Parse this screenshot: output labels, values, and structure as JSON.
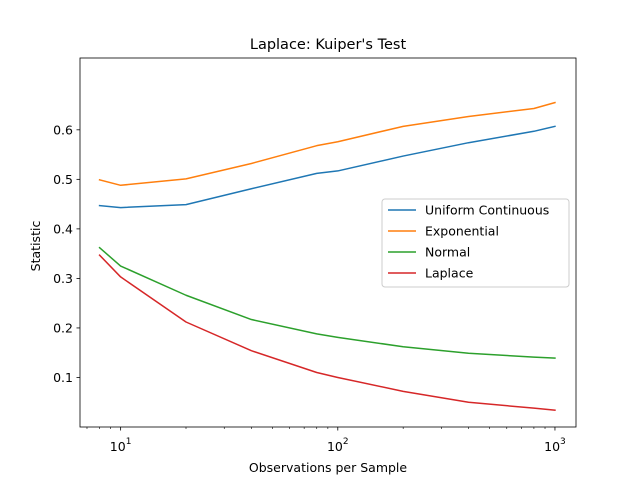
{
  "chart_data": {
    "type": "line",
    "title": "Laplace: Kuiper's Test",
    "xlabel": "Observations per Sample",
    "ylabel": "Statistic",
    "xscale": "log",
    "xlim": [
      6.5,
      1250
    ],
    "ylim": [
      0.0,
      0.745
    ],
    "x_ticks": [
      {
        "value": 10,
        "base": "10",
        "exp": "1"
      },
      {
        "value": 100,
        "base": "10",
        "exp": "2"
      },
      {
        "value": 1000,
        "base": "10",
        "exp": "3"
      }
    ],
    "y_ticks": [
      {
        "value": 0.1,
        "label": "0.1"
      },
      {
        "value": 0.2,
        "label": "0.2"
      },
      {
        "value": 0.3,
        "label": "0.3"
      },
      {
        "value": 0.4,
        "label": "0.4"
      },
      {
        "value": 0.5,
        "label": "0.5"
      },
      {
        "value": 0.6,
        "label": "0.6"
      }
    ],
    "grid": false,
    "legend_position": "center-right",
    "x": [
      8,
      10,
      20,
      40,
      80,
      100,
      200,
      400,
      800,
      1000
    ],
    "series": [
      {
        "name": "Uniform Continuous",
        "color": "#1f77b4",
        "values": [
          0.447,
          0.443,
          0.449,
          0.481,
          0.512,
          0.517,
          0.547,
          0.574,
          0.597,
          0.607
        ]
      },
      {
        "name": "Exponential",
        "color": "#ff7f0e",
        "values": [
          0.499,
          0.488,
          0.501,
          0.532,
          0.568,
          0.576,
          0.607,
          0.627,
          0.643,
          0.655
        ]
      },
      {
        "name": "Normal",
        "color": "#2ca02c",
        "values": [
          0.362,
          0.325,
          0.266,
          0.217,
          0.188,
          0.181,
          0.162,
          0.149,
          0.141,
          0.139
        ]
      },
      {
        "name": "Laplace",
        "color": "#d62728",
        "values": [
          0.347,
          0.303,
          0.212,
          0.154,
          0.11,
          0.1,
          0.072,
          0.05,
          0.038,
          0.034
        ]
      }
    ]
  }
}
